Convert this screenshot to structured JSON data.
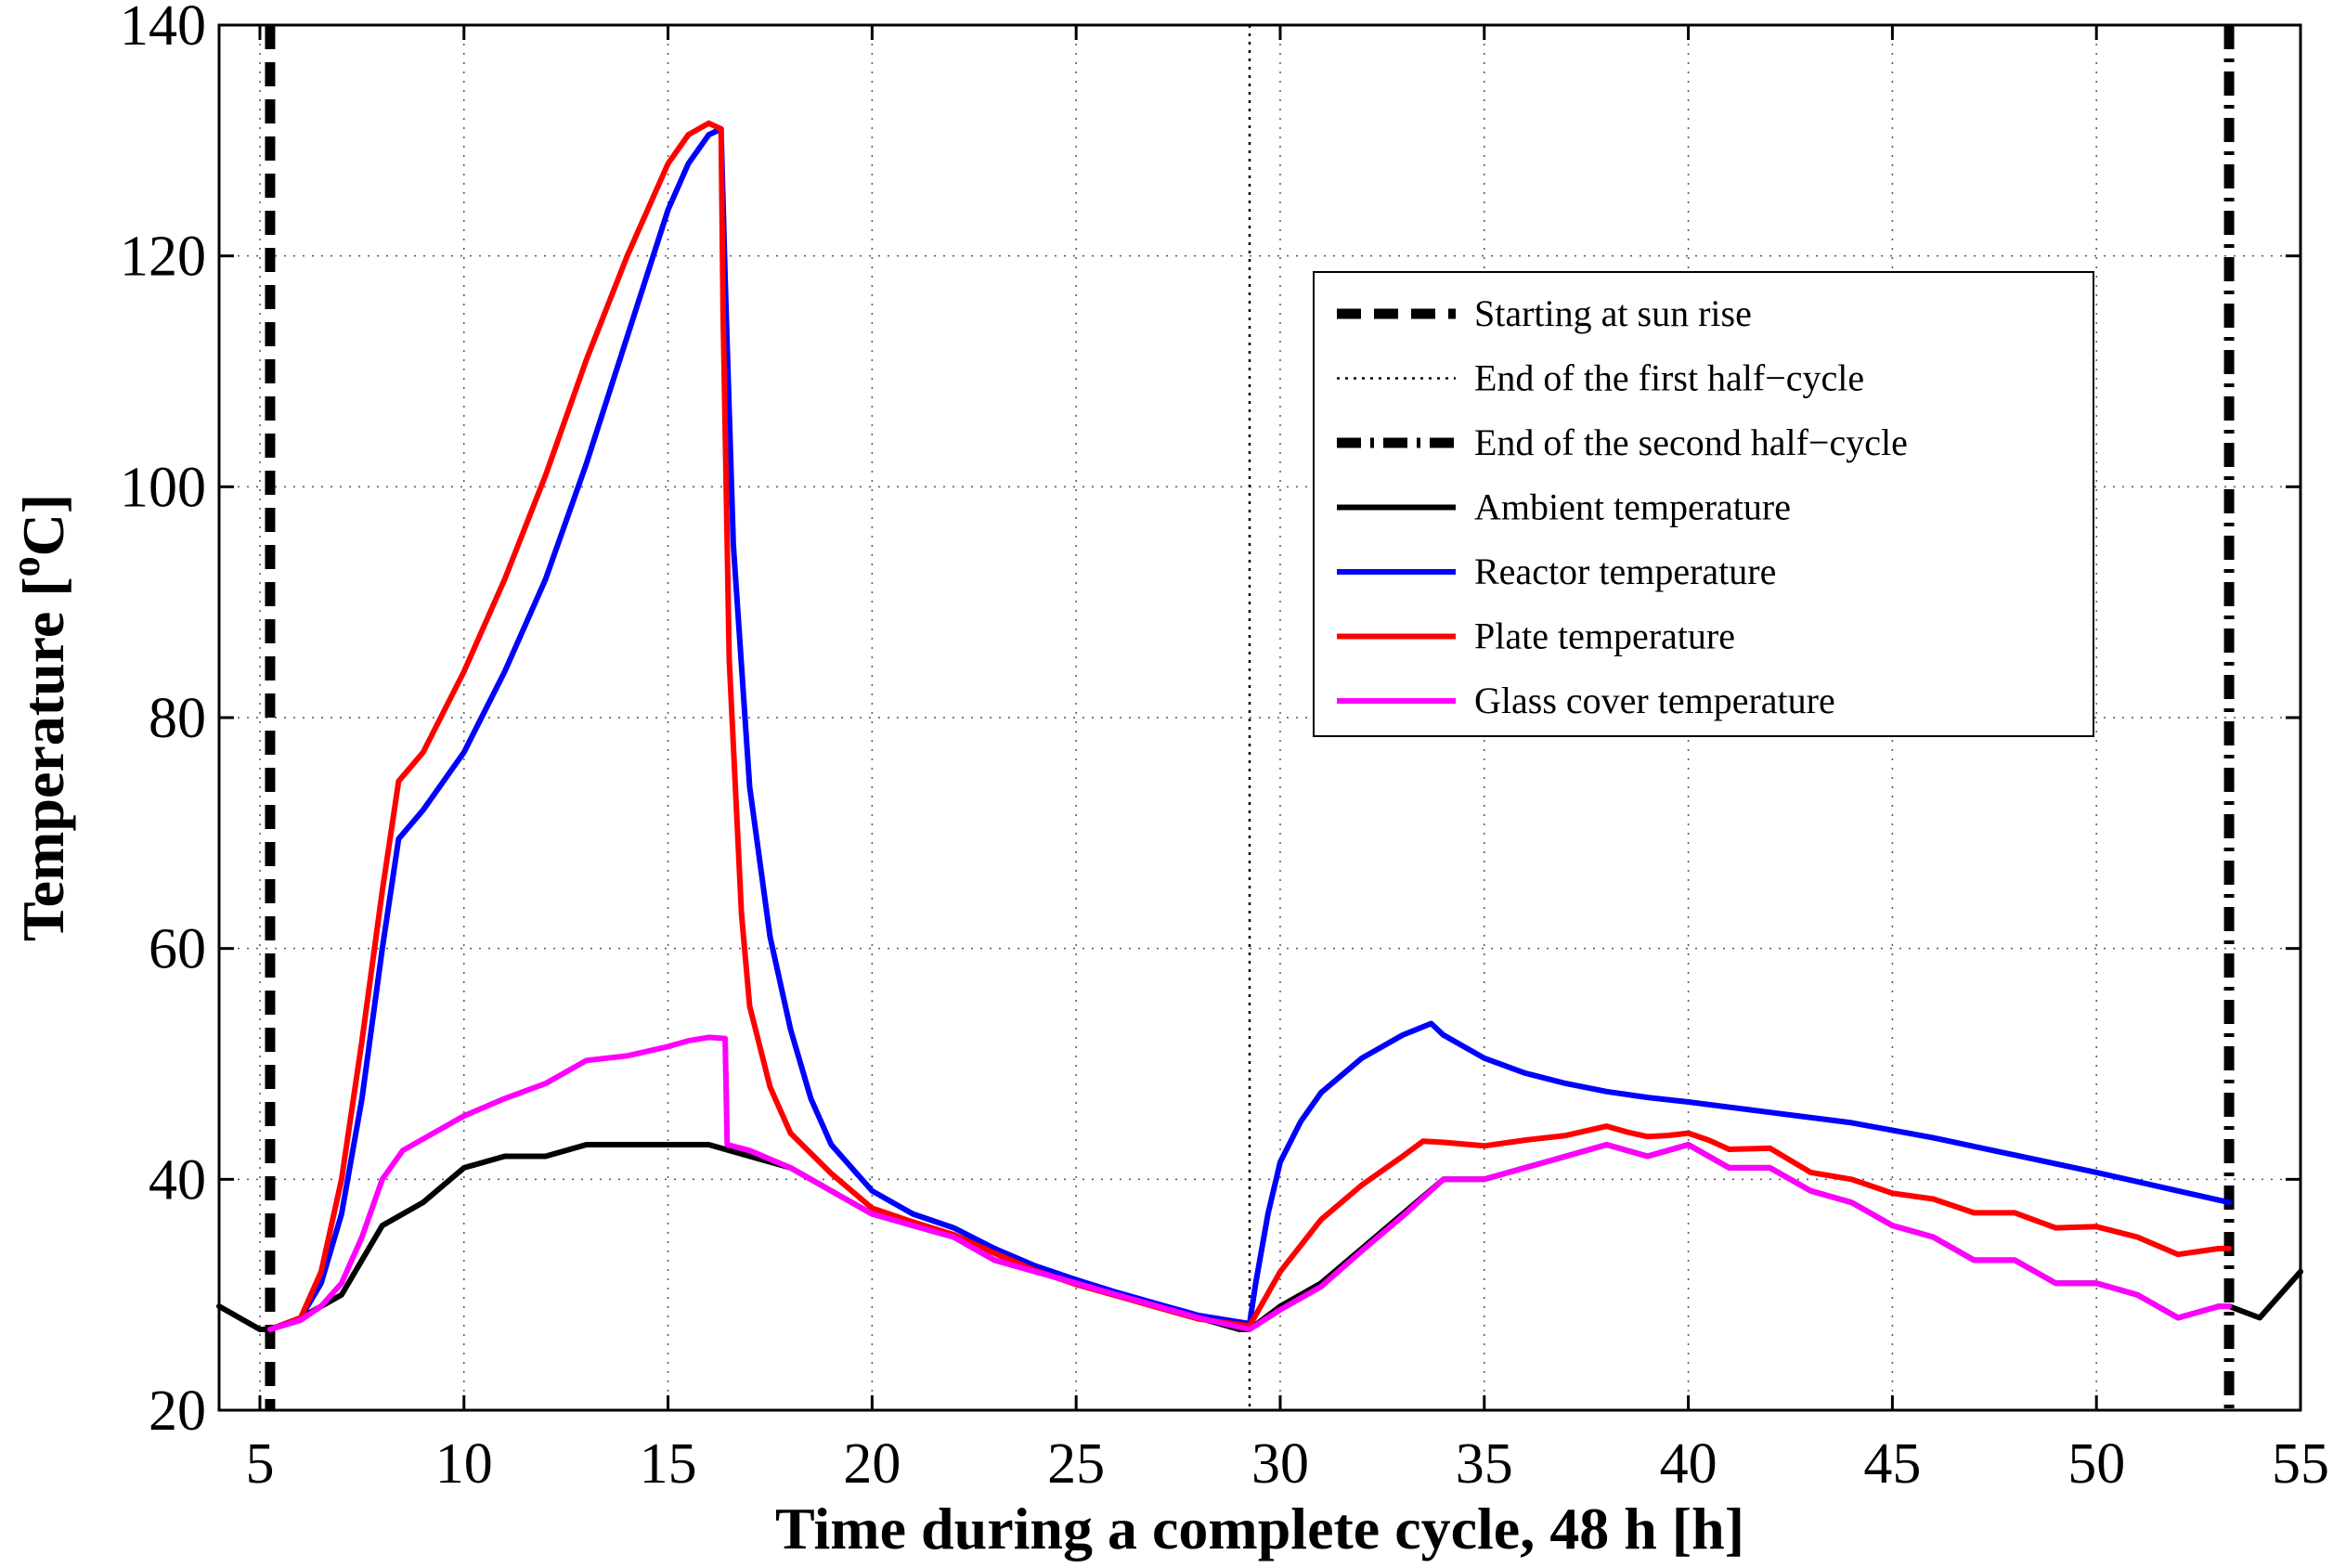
{
  "chart_data": {
    "type": "line",
    "title": "",
    "xlabel": "Time during a complete cycle, 48 h  [h]",
    "ylabel_main": "Temperature [",
    "ylabel_sup": "o",
    "ylabel_unit": "C]",
    "xlim": [
      4,
      55
    ],
    "ylim": [
      20,
      140
    ],
    "xticks": [
      5,
      10,
      15,
      20,
      25,
      30,
      35,
      40,
      45,
      50,
      55
    ],
    "yticks": [
      20,
      40,
      60,
      80,
      100,
      120,
      140
    ],
    "grid": true,
    "legend_position": "upper-right",
    "vlines": [
      {
        "name": "Starting at sun rise",
        "x": 5.25,
        "style": "dashed",
        "color": "#000000"
      },
      {
        "name": "End of the first half−cycle",
        "x": 29.25,
        "style": "dotted",
        "color": "#000000"
      },
      {
        "name": "End of the second half−cycle",
        "x": 53.25,
        "style": "dashdot",
        "color": "#000000"
      }
    ],
    "series": [
      {
        "name": "Ambient temperature",
        "color": "#000000",
        "x": [
          4,
          5,
          5.25,
          6,
          7,
          8,
          9,
          10,
          11,
          12,
          13,
          14,
          15,
          16,
          17,
          18,
          19,
          20,
          21,
          22,
          23,
          24,
          25,
          26,
          27,
          28,
          29,
          29.25,
          30,
          31,
          32,
          33,
          34,
          35,
          36,
          37,
          38,
          39,
          40,
          41,
          42,
          43,
          44,
          45,
          46,
          47,
          48,
          49,
          50,
          51,
          52,
          53,
          53.25,
          54,
          55
        ],
        "y": [
          29,
          27,
          27,
          28,
          30,
          36,
          38,
          41,
          42,
          42,
          43,
          43,
          43,
          43,
          42,
          41,
          39,
          37,
          36,
          35,
          33,
          32,
          31,
          30,
          29,
          28,
          27,
          27,
          29,
          31,
          34,
          37,
          40,
          40,
          41,
          42,
          43,
          42,
          43,
          41,
          41,
          39,
          38,
          36,
          35,
          33,
          33,
          31,
          31,
          30,
          28,
          29,
          29,
          28,
          32
        ]
      },
      {
        "name": "Reactor temperature",
        "color": "#0000ff",
        "x": [
          5.25,
          6,
          6.5,
          7,
          7.5,
          8,
          8.4,
          9,
          10,
          11,
          12,
          13,
          14,
          15,
          15.5,
          16,
          16.3,
          16.4,
          16.6,
          17,
          17.5,
          18,
          18.5,
          19,
          20,
          21,
          22,
          23,
          24,
          25,
          26,
          27,
          28,
          29.25,
          29.4,
          29.7,
          30,
          30.5,
          31,
          32,
          33,
          33.7,
          34,
          35,
          36,
          37,
          38,
          39,
          40,
          42,
          44,
          46,
          48,
          50,
          52,
          53.25
        ],
        "y": [
          27,
          28,
          31,
          37,
          47,
          60,
          69.5,
          72,
          77,
          84,
          92,
          102,
          113,
          124,
          128,
          130.5,
          131,
          118,
          95,
          74,
          61,
          53,
          47,
          43,
          39,
          37,
          35.8,
          34,
          32.5,
          31.3,
          30.2,
          29.2,
          28.2,
          27.5,
          31,
          37,
          41.5,
          45,
          47.5,
          50.5,
          52.5,
          53.5,
          52.5,
          50.5,
          49.2,
          48.3,
          47.6,
          47.1,
          46.7,
          45.8,
          44.9,
          43.6,
          42.1,
          40.6,
          39,
          38
        ]
      },
      {
        "name": "Plate temperature",
        "color": "#ff0000",
        "x": [
          5.25,
          6,
          6.5,
          7,
          7.5,
          8,
          8.4,
          9,
          10,
          11,
          12,
          13,
          14,
          15,
          15.5,
          16,
          16.3,
          16.35,
          16.5,
          16.8,
          17,
          17.5,
          18,
          19,
          20,
          21,
          22,
          23,
          24,
          25,
          26,
          27,
          28,
          29.25,
          30,
          31,
          32,
          33,
          33.5,
          34,
          35,
          36,
          37,
          37.5,
          38,
          38.5,
          39,
          39.5,
          40,
          40.5,
          41,
          42,
          43,
          44,
          45,
          46,
          47,
          48,
          49,
          50,
          51,
          52,
          53,
          53.25
        ],
        "y": [
          27,
          28,
          32,
          40,
          52,
          65,
          74.5,
          77,
          84,
          92,
          101,
          111,
          120,
          128,
          130.5,
          131.5,
          131,
          115,
          85,
          63,
          55,
          48,
          44,
          40.5,
          37.5,
          36.3,
          35.2,
          33.6,
          32.1,
          30.9,
          29.9,
          28.9,
          27.9,
          27.3,
          32,
          36.5,
          39.5,
          42,
          43.3,
          43.2,
          42.9,
          43.4,
          43.8,
          44.2,
          44.6,
          44.1,
          43.7,
          43.8,
          44,
          43.4,
          42.6,
          42.7,
          40.6,
          40,
          38.8,
          38.3,
          37.1,
          37.1,
          35.8,
          35.9,
          35,
          33.5,
          34,
          34
        ]
      },
      {
        "name": "Glass cover temperature",
        "color": "#ff00ff",
        "x": [
          5.25,
          6,
          6.5,
          7,
          7.5,
          8,
          8.5,
          9,
          10,
          11,
          12,
          13,
          14,
          15,
          15.5,
          16,
          16.4,
          16.45,
          17,
          18,
          19,
          20,
          21,
          22,
          23,
          24,
          25,
          26,
          27,
          28,
          29.25,
          30,
          31,
          32,
          33,
          34,
          35,
          36,
          37,
          38,
          39,
          40,
          41,
          42,
          43,
          44,
          45,
          46,
          47,
          48,
          49,
          50,
          51,
          52,
          53,
          53.25
        ],
        "y": [
          27,
          27.8,
          29,
          31,
          35,
          40,
          42.5,
          43.5,
          45.5,
          47,
          48.3,
          50.3,
          50.7,
          51.5,
          52,
          52.3,
          52.2,
          43,
          42.5,
          41,
          39,
          37,
          36,
          35,
          33,
          32,
          31,
          30,
          29,
          28,
          27,
          28.7,
          30.7,
          33.8,
          36.8,
          40,
          40,
          41,
          42,
          43,
          42,
          43,
          41,
          41,
          39,
          38,
          36,
          35,
          33,
          33,
          31,
          31,
          30,
          28,
          29,
          29
        ]
      }
    ]
  }
}
